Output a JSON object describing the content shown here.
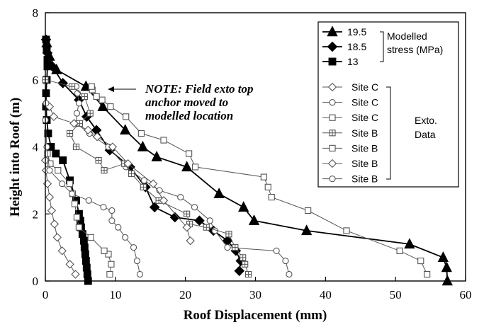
{
  "chart_data": {
    "type": "line",
    "xlabel": "Roof Displacement (mm)",
    "ylabel": "Height into Roof (m)",
    "xlim": [
      0,
      60
    ],
    "ylim": [
      0,
      8
    ],
    "xticks": [
      "0",
      "10",
      "20",
      "30",
      "40",
      "50",
      "60"
    ],
    "yticks": [
      "0",
      "2",
      "4",
      "6",
      "8"
    ],
    "annotation": [
      "NOTE: Field exto top",
      "anchor moved to",
      "modelled location"
    ],
    "legend": {
      "group1_label": [
        "Modelled",
        "stress (MPa)"
      ],
      "group2_label": [
        "Exto.",
        "Data"
      ]
    },
    "series": [
      {
        "name": "19.5",
        "group": "model",
        "marker": "triangle",
        "filled": true,
        "color": "#000000",
        "x": [
          57.4,
          57.3,
          56.8,
          52.0,
          37.3,
          29.8,
          28.3,
          24.8,
          20.2,
          15.9,
          13.9,
          11.4,
          8.2,
          5.8,
          1.6,
          0.6,
          0.2
        ],
        "y": [
          0.0,
          0.4,
          0.7,
          1.1,
          1.5,
          1.8,
          2.2,
          2.6,
          3.4,
          3.7,
          4.0,
          4.5,
          5.2,
          5.8,
          6.3,
          6.7,
          7.1
        ]
      },
      {
        "name": "18.5",
        "group": "model",
        "marker": "diamond",
        "filled": true,
        "color": "#000000",
        "x": [
          27.7,
          27.9,
          27.2,
          26.0,
          24.0,
          22.0,
          18.5,
          15.6,
          14.3,
          12.1,
          9.2,
          7.3,
          5.9,
          4.8,
          2.5,
          1.0,
          0.3,
          0.1
        ],
        "y": [
          0.3,
          0.6,
          0.9,
          1.2,
          1.5,
          1.8,
          1.9,
          2.2,
          2.8,
          3.4,
          3.9,
          4.5,
          4.9,
          5.4,
          5.9,
          6.4,
          6.8,
          7.2
        ]
      },
      {
        "name": "13",
        "group": "model",
        "marker": "square",
        "filled": true,
        "color": "#000000",
        "x": [
          6.1,
          6.0,
          5.9,
          5.8,
          5.7,
          5.6,
          5.5,
          5.3,
          5.1,
          5.0,
          4.8,
          4.4,
          3.5,
          2.5,
          1.5,
          0.8,
          0.4,
          0.2,
          0.1,
          0.1,
          0.2,
          0.3,
          0.3,
          0.2,
          0.1
        ],
        "y": [
          0.0,
          0.2,
          0.4,
          0.6,
          0.8,
          1.0,
          1.2,
          1.4,
          1.6,
          1.8,
          2.0,
          2.4,
          3.0,
          3.6,
          3.8,
          4.0,
          4.4,
          4.8,
          5.2,
          5.6,
          6.0,
          6.4,
          6.6,
          6.9,
          7.2
        ]
      },
      {
        "name": "Site C",
        "group": "exto",
        "marker": "diamond",
        "filled": false,
        "color": "#555555",
        "x": [
          4.3,
          3.5,
          2.4,
          1.7,
          1.3,
          0.9,
          0.6,
          0.3,
          0.1,
          0.0
        ],
        "y": [
          0.2,
          0.5,
          0.9,
          1.3,
          1.7,
          2.1,
          2.5,
          2.9,
          3.3,
          3.6
        ]
      },
      {
        "name": "Site C",
        "group": "exto",
        "marker": "circle",
        "filled": false,
        "color": "#555555",
        "x": [
          34.8,
          34.3,
          33.0,
          26.0,
          24.2,
          23.5,
          21.3,
          19.3,
          16.3,
          14.1,
          11.5,
          9.0,
          6.3,
          4.4,
          4.5,
          4.8,
          4.6,
          4.4
        ],
        "y": [
          0.2,
          0.6,
          0.9,
          1.0,
          1.5,
          1.8,
          2.2,
          2.5,
          2.7,
          3.0,
          3.4,
          4.0,
          4.4,
          4.7,
          5.0,
          5.3,
          5.6,
          5.8
        ]
      },
      {
        "name": "Site C",
        "group": "exto",
        "marker": "square",
        "filled": false,
        "color": "#555555",
        "x": [
          9.2,
          9.4,
          9.0,
          8.4,
          6.5,
          4.8,
          4.5,
          4.2,
          3.9,
          3.5,
          1.8,
          0.7,
          0.3
        ],
        "y": [
          0.2,
          0.5,
          0.8,
          0.9,
          1.3,
          1.6,
          1.9,
          2.3,
          2.6,
          2.9,
          3.3,
          3.5,
          3.8
        ]
      },
      {
        "name": "Site B",
        "group": "exto",
        "marker": "square-plus",
        "filled": false,
        "color": "#555555",
        "x": [
          29.0,
          28.5,
          28.2,
          27.1,
          26.2,
          23.0,
          20.6,
          20.2,
          16.2,
          14.0,
          12.3,
          11.3,
          8.4,
          7.6,
          4.4,
          3.5,
          4.9,
          6.4,
          5.6,
          3.8,
          0.0
        ],
        "y": [
          0.2,
          0.5,
          0.7,
          1.0,
          1.4,
          1.6,
          1.7,
          2.0,
          2.4,
          2.8,
          3.2,
          3.5,
          3.3,
          3.6,
          4.0,
          4.4,
          4.7,
          5.0,
          5.5,
          5.8,
          6.0
        ]
      },
      {
        "name": "Site B",
        "group": "exto",
        "marker": "square",
        "filled": false,
        "color": "#555555",
        "x": [
          54.5,
          53.6,
          50.6,
          43.0,
          37.5,
          32.3,
          31.8,
          31.2,
          21.4,
          20.5,
          16.9,
          13.7,
          11.5,
          9.3,
          8.1,
          7.3,
          6.7,
          6.6
        ],
        "y": [
          0.2,
          0.6,
          0.9,
          1.5,
          2.1,
          2.5,
          2.8,
          3.1,
          3.4,
          3.8,
          4.2,
          4.4,
          4.9,
          5.2,
          5.4,
          5.5,
          5.7,
          5.8
        ]
      },
      {
        "name": "Site B",
        "group": "exto",
        "marker": "diamond",
        "filled": false,
        "color": "#555555",
        "x": [
          20.7,
          20.2,
          16.9,
          15.4,
          11.8,
          9.6,
          7.4,
          6.1,
          4.1,
          1.2,
          0.6
        ],
        "y": [
          1.2,
          1.6,
          2.4,
          2.9,
          3.5,
          4.0,
          4.3,
          4.5,
          4.7,
          4.9,
          5.2
        ]
      },
      {
        "name": "Site B",
        "group": "exto",
        "marker": "circle",
        "filled": false,
        "color": "#555555",
        "x": [
          13.5,
          13.1,
          12.6,
          11.4,
          10.4,
          9.5,
          9.5,
          8.3,
          6.2,
          3.8,
          2.4,
          0.6,
          0.2,
          0.0,
          0.1
        ],
        "y": [
          0.2,
          0.6,
          1.0,
          1.3,
          1.6,
          1.8,
          2.1,
          2.2,
          2.4,
          2.6,
          2.9,
          3.3,
          4.0,
          4.8,
          5.3
        ]
      }
    ]
  }
}
